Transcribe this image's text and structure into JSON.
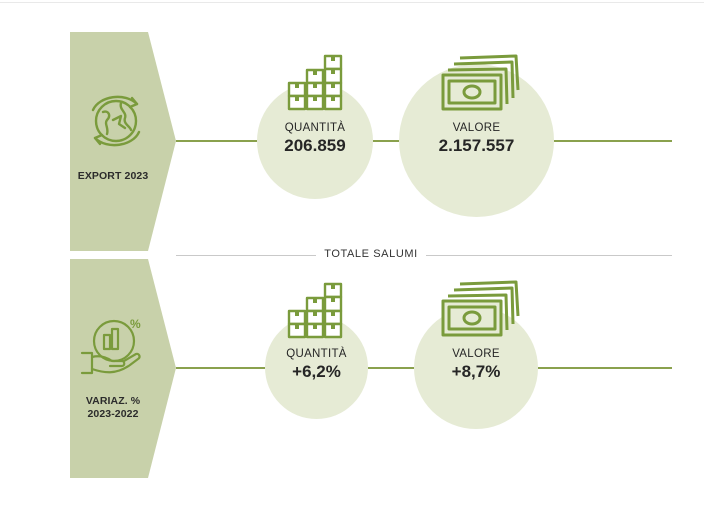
{
  "section_title": "TOTALE SALUMI",
  "panels": [
    {
      "label": "EXPORT 2023",
      "icon": "globe-arrows-icon"
    },
    {
      "label_line1": "VARIAZ. %",
      "label_line2": "2023-2022",
      "icon": "hand-growth-chart-icon"
    }
  ],
  "export": {
    "quantity_label": "QUANTITÀ",
    "quantity_value": "206.859",
    "value_label": "VALORE",
    "value_value": "2.157.557"
  },
  "variation": {
    "quantity_label": "QUANTITÀ",
    "quantity_value": "+6,2%",
    "value_label": "VALORE",
    "value_value": "+8,7%"
  },
  "colors": {
    "panel_fill": "#c8d1aa",
    "circle_fill": "#e6ebd5",
    "accent_line": "#8aa14d",
    "icon_green": "#7a9b3c"
  }
}
